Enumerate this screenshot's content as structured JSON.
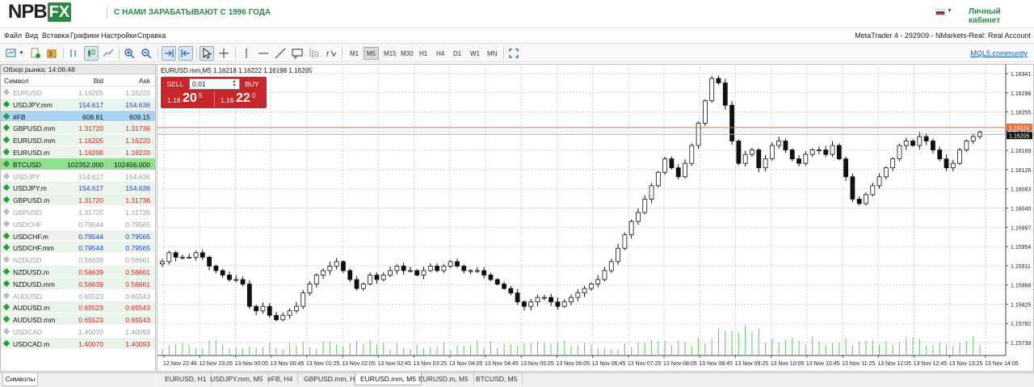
{
  "header": {
    "logo_left": "NPB",
    "logo_mark": "FX",
    "slogan": "С НАМИ ЗАРАБАТЫВАЮТ С 1996 ГОДА",
    "cabinet": "Личный кабинет",
    "language_flag": "ru-flag-icon"
  },
  "menu": {
    "items": [
      "Файл",
      "Вид",
      "Вставка",
      "Графики",
      "Настройки",
      "Справка"
    ],
    "server_info": "MetaTrader 4 - 292909 - NMarkets-Real: Real Account"
  },
  "toolbar": {
    "timeframes": [
      "M1",
      "M5",
      "M15",
      "M30",
      "H1",
      "H4",
      "D1",
      "W1",
      "MN"
    ],
    "active_timeframe": "M5",
    "mql_link": "MQL5.community"
  },
  "market_watch": {
    "title": "Обзор рынка: 14:06:48",
    "col_symbol": "Символ",
    "col_bid": "Bid",
    "col_ask": "Ask",
    "rows": [
      {
        "symbol": "EURUSD",
        "bid": "1.16205",
        "ask": "1.16220",
        "state": "grey"
      },
      {
        "symbol": "USDJPY.mm",
        "bid": "154.617",
        "ask": "154.636",
        "state": "blue"
      },
      {
        "symbol": "#FB",
        "bid": "608.81",
        "ask": "609.15",
        "state": "selected"
      },
      {
        "symbol": "GBPUSD.mm",
        "bid": "1.31720",
        "ask": "1.31736",
        "state": "red"
      },
      {
        "symbol": "EURUSD.mm",
        "bid": "1.16205",
        "ask": "1.16220",
        "state": "red"
      },
      {
        "symbol": "EURUSD.m",
        "bid": "1.16205",
        "ask": "1.16220",
        "state": "red"
      },
      {
        "symbol": "BTCUSD",
        "bid": "102352.000",
        "ask": "102456.000",
        "state": "green"
      },
      {
        "symbol": "USDJPY",
        "bid": "154.617",
        "ask": "154.636",
        "state": "grey"
      },
      {
        "symbol": "USDJPY.m",
        "bid": "154.617",
        "ask": "154.636",
        "state": "blue"
      },
      {
        "symbol": "GBPUSD.m",
        "bid": "1.31720",
        "ask": "1.31736",
        "state": "red"
      },
      {
        "symbol": "GBPUSD",
        "bid": "1.31720",
        "ask": "1.31736",
        "state": "grey"
      },
      {
        "symbol": "USDCHF",
        "bid": "0.79544",
        "ask": "0.79565",
        "state": "grey"
      },
      {
        "symbol": "USDCHF.m",
        "bid": "0.79544",
        "ask": "0.79565",
        "state": "blue"
      },
      {
        "symbol": "USDCHF.mm",
        "bid": "0.79544",
        "ask": "0.79565",
        "state": "blue"
      },
      {
        "symbol": "NZDUSD",
        "bid": "0.56639",
        "ask": "0.56661",
        "state": "grey"
      },
      {
        "symbol": "NZDUSD.m",
        "bid": "0.56639",
        "ask": "0.56661",
        "state": "red"
      },
      {
        "symbol": "NZDUSD.mm",
        "bid": "0.56639",
        "ask": "0.56661",
        "state": "red"
      },
      {
        "symbol": "AUDUSD",
        "bid": "0.65523",
        "ask": "0.65543",
        "state": "grey"
      },
      {
        "symbol": "AUDUSD.m",
        "bid": "0.65523",
        "ask": "0.65543",
        "state": "red"
      },
      {
        "symbol": "AUDUSD.mm",
        "bid": "0.65523",
        "ask": "0.65543",
        "state": "red"
      },
      {
        "symbol": "USDCAD",
        "bid": "1.40070",
        "ask": "1.40093",
        "state": "grey"
      },
      {
        "symbol": "USDCAD.m",
        "bid": "1.40070",
        "ask": "1.40093",
        "state": "red"
      }
    ],
    "tab_label": "Символы"
  },
  "chart": {
    "header": "EURUSD.mm,M5  1.16218 1.16222 1.16198 1.16205",
    "trade_panel": {
      "sell": "SELL",
      "buy": "BUY",
      "lot": "0.01",
      "sell_small": "1.16",
      "sell_big": "20",
      "sell_sup": "5",
      "buy_small": "1.16",
      "buy_big": "22",
      "buy_sup": "0"
    },
    "tabs": [
      "EURUSD, H1",
      "USDJPY.mm, M5",
      "#FB, H4",
      "GBPUSD.mm, H1",
      "EURUSD.mm, M5",
      "EURUSD.m, M5",
      "BTCUSD, M5"
    ],
    "active_tab": "EURUSD.mm, M5"
  },
  "colors": {
    "brand_green": "#2d8a46",
    "sell_red": "#c7262a",
    "grid": "#c8c8c8",
    "volume": "#2e9e2e",
    "ask_line": "#e8743a"
  },
  "chart_data": {
    "type": "candlestick",
    "symbol": "EURUSD.mm",
    "timeframe": "M5",
    "ylim": [
      1.15739,
      1.16341
    ],
    "y_ticks": [
      "1.16341",
      "1.16298",
      "1.16255",
      "1.16212",
      "1.16169",
      "1.16126",
      "1.16083",
      "1.16040",
      "1.15997",
      "1.15954",
      "1.15911",
      "1.15868",
      "1.15825",
      "1.15782",
      "1.15739"
    ],
    "x_ticks": [
      "12 Nov 22:46",
      "12 Nov 23:26",
      "13 Nov 00:05",
      "13 Nov 00:45",
      "13 Nov 01:25",
      "13 Nov 02:05",
      "13 Nov 02:45",
      "13 Nov 03:25",
      "13 Nov 04:05",
      "13 Nov 04:45",
      "13 Nov 05:25",
      "13 Nov 06:05",
      "13 Nov 06:45",
      "13 Nov 07:25",
      "13 Nov 08:05",
      "13 Nov 08:45",
      "13 Nov 09:25",
      "13 Nov 10:05",
      "13 Nov 10:45",
      "13 Nov 11:25",
      "13 Nov 12:05",
      "13 Nov 12:45",
      "13 Nov 13:25",
      "13 Nov 14:05"
    ],
    "ask_price": "1.16220",
    "bid_price": "1.16205",
    "close_path": [
      1.1592,
      1.1594,
      1.1593,
      1.1593,
      1.1593,
      1.1594,
      1.1593,
      1.1591,
      1.159,
      1.1589,
      1.1588,
      1.1588,
      1.1587,
      1.1582,
      1.1581,
      1.1582,
      1.158,
      1.1579,
      1.158,
      1.1581,
      1.1582,
      1.1585,
      1.1587,
      1.1589,
      1.159,
      1.1591,
      1.1592,
      1.159,
      1.1588,
      1.1586,
      1.1587,
      1.1589,
      1.1588,
      1.1589,
      1.159,
      1.1591,
      1.159,
      1.159,
      1.1589,
      1.159,
      1.1591,
      1.159,
      1.1591,
      1.1592,
      1.1591,
      1.159,
      1.159,
      1.159,
      1.1589,
      1.1588,
      1.1587,
      1.1586,
      1.1585,
      1.1583,
      1.1582,
      1.1583,
      1.1584,
      1.1584,
      1.1583,
      1.1582,
      1.1583,
      1.1584,
      1.1585,
      1.1586,
      1.1587,
      1.1588,
      1.159,
      1.1592,
      1.1595,
      1.1598,
      1.1601,
      1.1603,
      1.1606,
      1.1609,
      1.1612,
      1.1615,
      1.1613,
      1.1611,
      1.1614,
      1.1618,
      1.1623,
      1.1628,
      1.1633,
      1.1632,
      1.1627,
      1.1619,
      1.1614,
      1.1616,
      1.1617,
      1.1613,
      1.1615,
      1.1618,
      1.1619,
      1.1617,
      1.1615,
      1.1614,
      1.1616,
      1.1617,
      1.1617,
      1.1616,
      1.1618,
      1.1615,
      1.1611,
      1.1606,
      1.1605,
      1.1607,
      1.1609,
      1.1611,
      1.1613,
      1.1615,
      1.1618,
      1.1619,
      1.1618,
      1.162,
      1.1619,
      1.1617,
      1.1615,
      1.1613,
      1.1614,
      1.1617,
      1.1619,
      1.162,
      1.1621
    ]
  }
}
